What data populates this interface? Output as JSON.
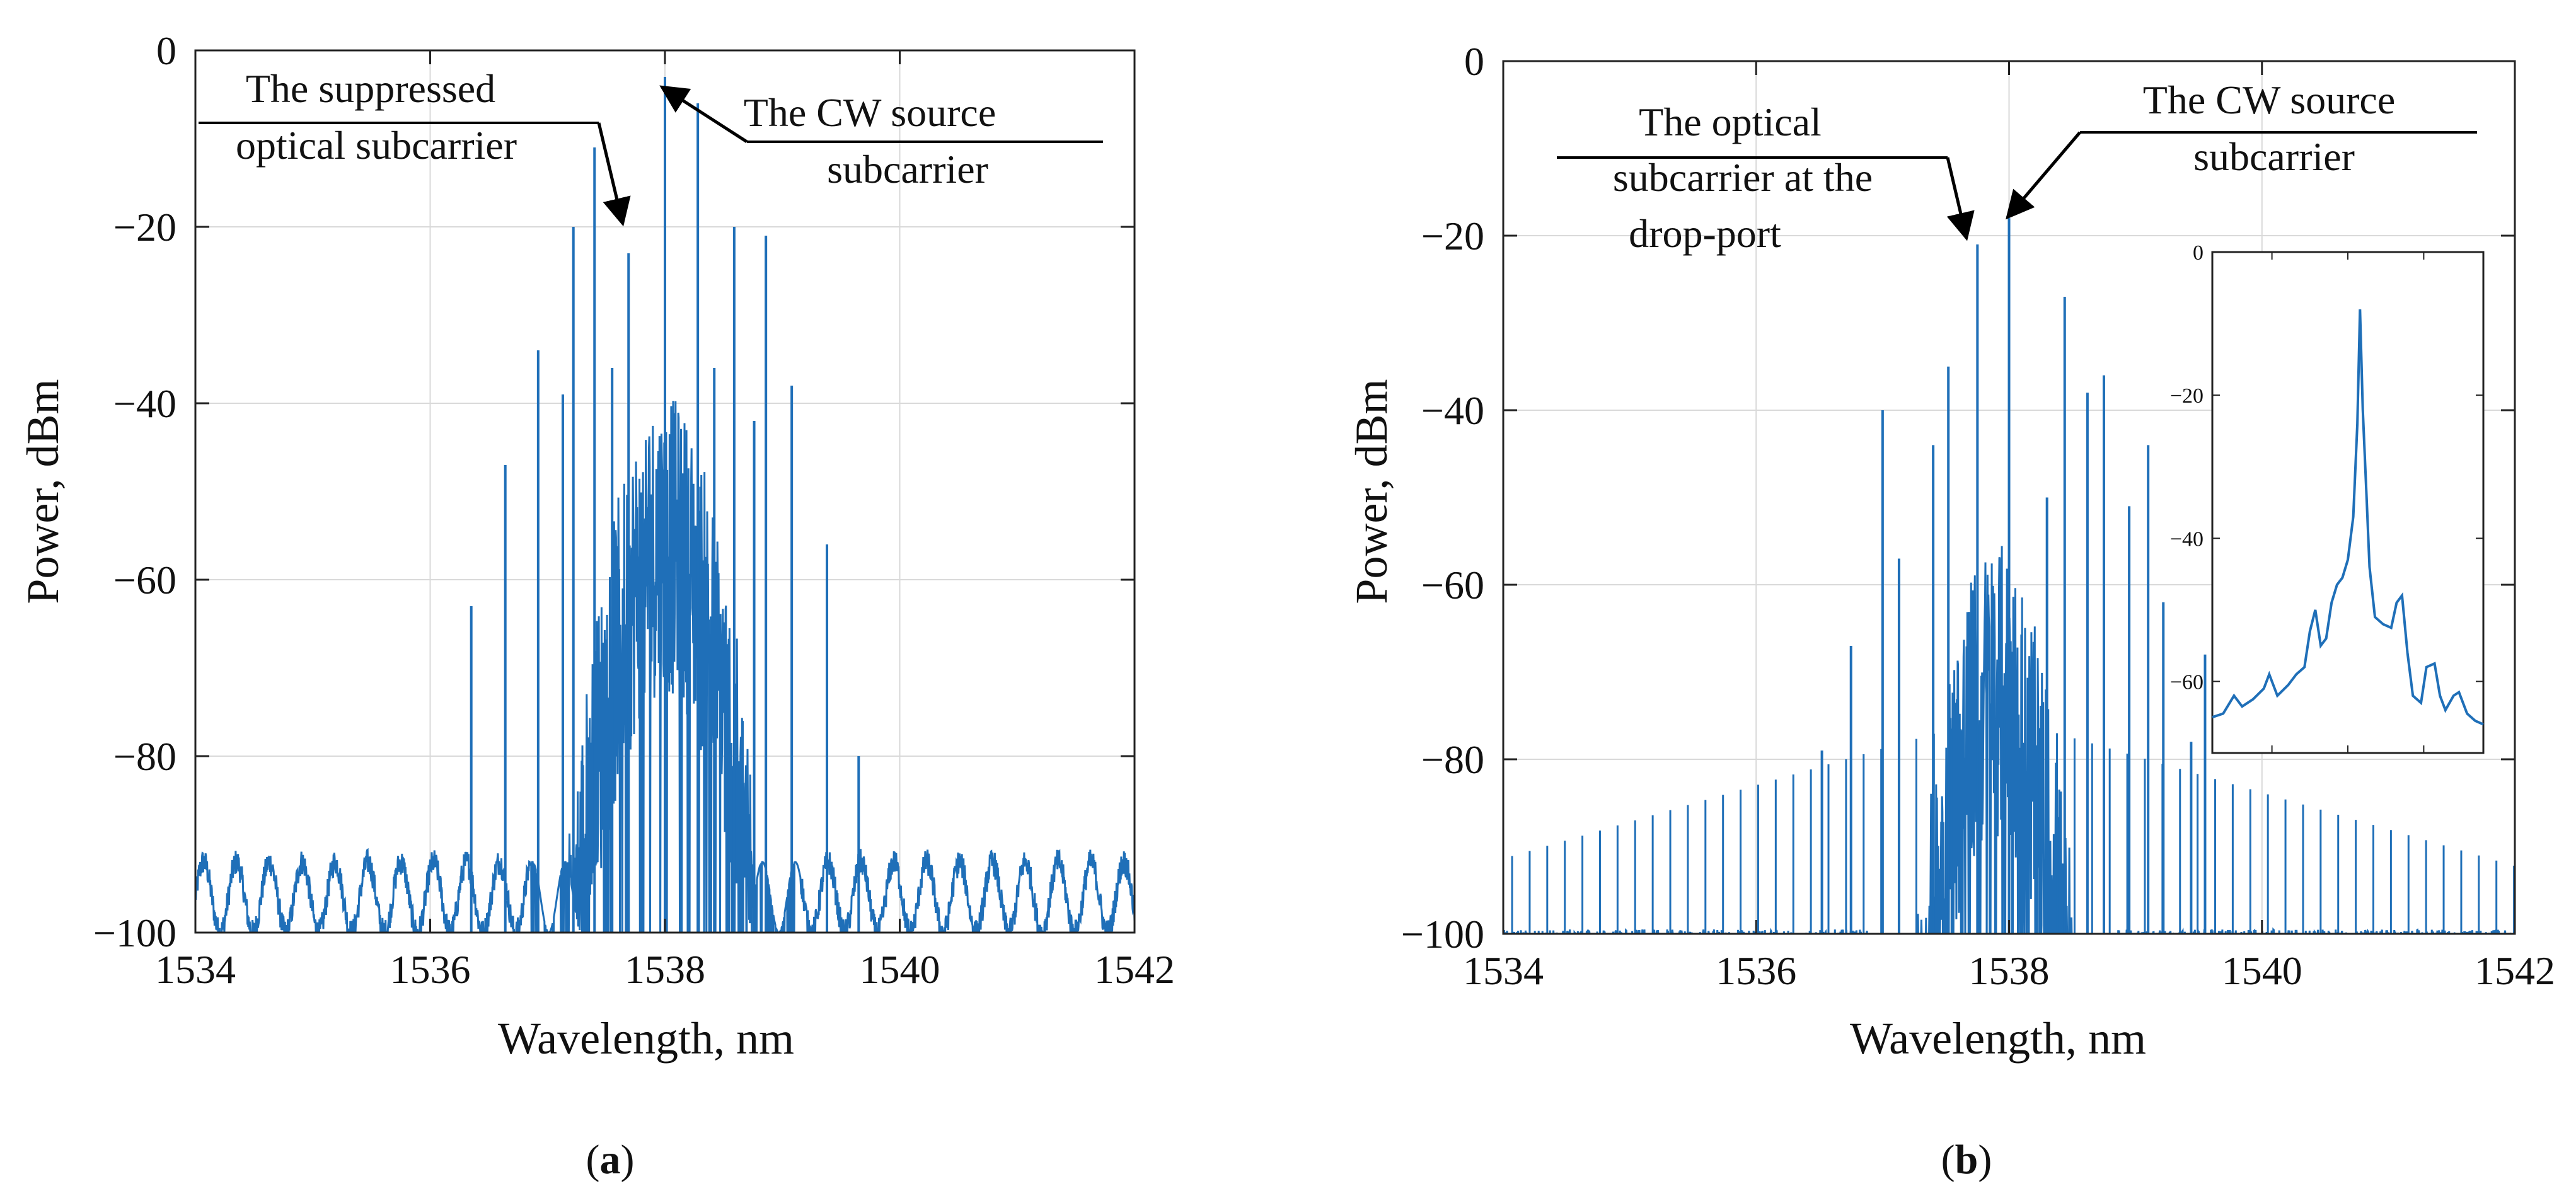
{
  "chart_data": [
    {
      "type": "line",
      "panel_label": "a",
      "xlabel": "Wavelength, nm",
      "ylabel": "Power, dBm",
      "xlim": [
        1534,
        1542
      ],
      "ylim": [
        -100,
        0
      ],
      "xticks": [
        "1534",
        "1536",
        "1538",
        "1540",
        "1542"
      ],
      "yticks": [
        "0",
        "−20",
        "−40",
        "−60",
        "−80",
        "−100"
      ],
      "grid": true,
      "series_color": "#1f6fb8",
      "spectrum": {
        "center": 1538.0,
        "spacing": 0.139,
        "noise_width": 0.72,
        "noise_peak": -56,
        "floor": -95,
        "floor_ripple_period": 0.28,
        "floor_ripple_amp": 4
      },
      "spectral_lines": [
        {
          "x": 1536.35,
          "y": -63
        },
        {
          "x": 1536.64,
          "y": -47
        },
        {
          "x": 1536.92,
          "y": -34
        },
        {
          "x": 1537.13,
          "y": -39
        },
        {
          "x": 1537.22,
          "y": -20
        },
        {
          "x": 1537.4,
          "y": -11
        },
        {
          "x": 1537.55,
          "y": -36
        },
        {
          "x": 1537.69,
          "y": -23
        },
        {
          "x": 1538.0,
          "y": -3
        },
        {
          "x": 1538.28,
          "y": -6
        },
        {
          "x": 1538.42,
          "y": -36
        },
        {
          "x": 1538.59,
          "y": -20
        },
        {
          "x": 1538.76,
          "y": -42
        },
        {
          "x": 1538.86,
          "y": -21
        },
        {
          "x": 1539.08,
          "y": -38
        },
        {
          "x": 1539.38,
          "y": -56
        },
        {
          "x": 1539.65,
          "y": -80
        }
      ],
      "annotations": [
        {
          "text_lines": [
            "The suppressed",
            "optical subcarrier"
          ],
          "target": {
            "x": 1537.69,
            "y": -20
          }
        },
        {
          "text_lines": [
            "The CW source",
            "subcarrier"
          ],
          "target": {
            "x": 1538.0,
            "y": -3
          }
        }
      ]
    },
    {
      "type": "line",
      "panel_label": "b",
      "xlabel": "Wavelength, nm",
      "ylabel": "Power, dBm",
      "xlim": [
        1534,
        1542
      ],
      "ylim": [
        -100,
        0
      ],
      "xticks": [
        "1534",
        "1536",
        "1538",
        "1540",
        "1542"
      ],
      "yticks": [
        "0",
        "−20",
        "−40",
        "−60",
        "−80",
        "−100"
      ],
      "grid": true,
      "series_color": "#1f6fb8",
      "spectrum": {
        "center": 1537.9,
        "spacing": 0.139,
        "noise_width": 0.6,
        "noise_peak": -72,
        "floor": -100,
        "floor_ripple_period": 0.139,
        "floor_ripple_amp": 0
      },
      "spectral_lines": [
        {
          "x": 1536.52,
          "y": -79
        },
        {
          "x": 1536.75,
          "y": -67
        },
        {
          "x": 1537.0,
          "y": -40
        },
        {
          "x": 1537.13,
          "y": -57
        },
        {
          "x": 1537.4,
          "y": -44
        },
        {
          "x": 1537.52,
          "y": -35
        },
        {
          "x": 1537.75,
          "y": -21
        },
        {
          "x": 1538.0,
          "y": -18
        },
        {
          "x": 1538.3,
          "y": -50
        },
        {
          "x": 1538.44,
          "y": -27
        },
        {
          "x": 1538.62,
          "y": -38
        },
        {
          "x": 1538.75,
          "y": -36
        },
        {
          "x": 1538.95,
          "y": -51
        },
        {
          "x": 1539.1,
          "y": -44
        },
        {
          "x": 1539.22,
          "y": -62
        },
        {
          "x": 1539.44,
          "y": -78
        },
        {
          "x": 1539.55,
          "y": -68
        }
      ],
      "annotations": [
        {
          "text_lines": [
            "The optical",
            "subcarrier at the",
            "drop-port"
          ],
          "target": {
            "x": 1537.75,
            "y": -21
          }
        },
        {
          "text_lines": [
            "The CW source",
            "subcarrier"
          ],
          "target": {
            "x": 1538.0,
            "y": -18
          }
        }
      ],
      "inset": {
        "ylim": [
          -70,
          0
        ],
        "yticks": [
          "0",
          "−20",
          "−40",
          "−60"
        ],
        "grid": false,
        "trace": [
          [
            0.0,
            -65
          ],
          [
            0.04,
            -64.5
          ],
          [
            0.08,
            -62
          ],
          [
            0.11,
            -63.5
          ],
          [
            0.15,
            -62.5
          ],
          [
            0.19,
            -61
          ],
          [
            0.21,
            -59
          ],
          [
            0.24,
            -62
          ],
          [
            0.28,
            -60.5
          ],
          [
            0.31,
            -59
          ],
          [
            0.34,
            -58
          ],
          [
            0.36,
            -53
          ],
          [
            0.38,
            -50
          ],
          [
            0.4,
            -55
          ],
          [
            0.42,
            -54
          ],
          [
            0.44,
            -49
          ],
          [
            0.46,
            -46.5
          ],
          [
            0.48,
            -45.5
          ],
          [
            0.5,
            -43
          ],
          [
            0.52,
            -37
          ],
          [
            0.535,
            -24
          ],
          [
            0.545,
            -8
          ],
          [
            0.555,
            -22
          ],
          [
            0.57,
            -35
          ],
          [
            0.58,
            -44
          ],
          [
            0.6,
            -51
          ],
          [
            0.63,
            -52
          ],
          [
            0.66,
            -52.5
          ],
          [
            0.68,
            -49
          ],
          [
            0.7,
            -48
          ],
          [
            0.72,
            -56
          ],
          [
            0.74,
            -62
          ],
          [
            0.77,
            -63
          ],
          [
            0.79,
            -58
          ],
          [
            0.82,
            -57.5
          ],
          [
            0.84,
            -62
          ],
          [
            0.86,
            -64
          ],
          [
            0.89,
            -62
          ],
          [
            0.91,
            -61.5
          ],
          [
            0.94,
            -64.5
          ],
          [
            0.97,
            -65.5
          ],
          [
            1.0,
            -66
          ]
        ]
      }
    }
  ]
}
